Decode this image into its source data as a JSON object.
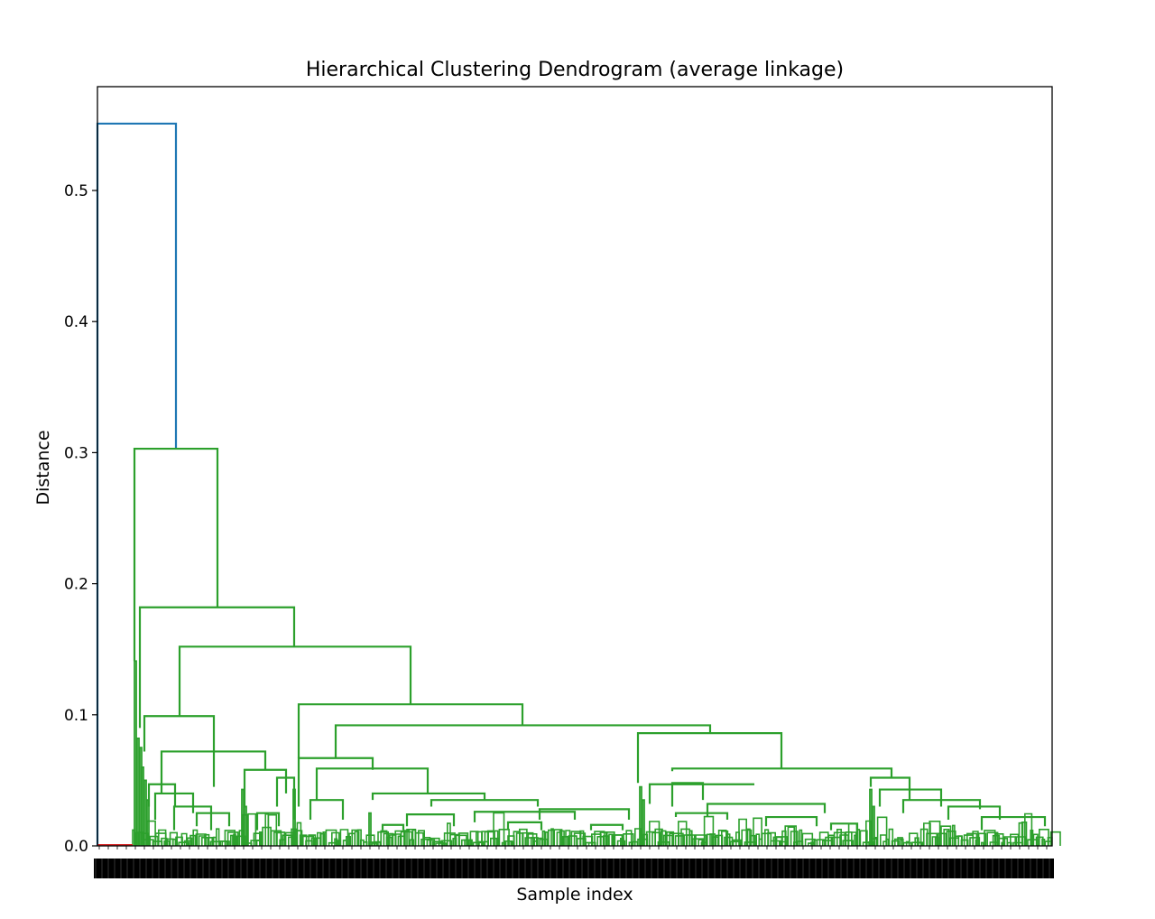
{
  "chart_data": {
    "type": "dendrogram",
    "title": "Hierarchical Clustering Dendrogram (average linkage)",
    "xlabel": "Sample index",
    "ylabel": "Distance",
    "ylim": [
      0.0,
      0.58
    ],
    "yticks": [
      0.0,
      0.1,
      0.2,
      0.3,
      0.4,
      0.5
    ],
    "ytick_labels": [
      "0.0",
      "0.1",
      "0.2",
      "0.3",
      "0.4",
      "0.5"
    ],
    "x_tick_labels": "dense, overlapping and unreadable",
    "grid": false,
    "colors": {
      "above_threshold": "#1f77b4",
      "cluster_1": "#d62728",
      "cluster_2": "#2ca02c"
    },
    "merges": [
      {
        "height": 0.551,
        "color": "above_threshold",
        "note": "root merge: small red cluster + large green cluster"
      },
      {
        "height": 0.303,
        "color": "cluster_2"
      },
      {
        "height": 0.182,
        "color": "cluster_2"
      },
      {
        "height": 0.152,
        "color": "cluster_2"
      },
      {
        "height": 0.141,
        "color": "cluster_2"
      },
      {
        "height": 0.108,
        "color": "cluster_2"
      },
      {
        "height": 0.099,
        "color": "cluster_2"
      },
      {
        "height": 0.092,
        "color": "cluster_2"
      },
      {
        "height": 0.086,
        "color": "cluster_2"
      },
      {
        "height": 0.072,
        "color": "cluster_2"
      },
      {
        "height": 0.067,
        "color": "cluster_2"
      },
      {
        "height": 0.059,
        "color": "cluster_2"
      },
      {
        "height": 0.058,
        "color": "cluster_2"
      },
      {
        "height": 0.057,
        "color": "cluster_2"
      },
      {
        "height": 0.052,
        "color": "cluster_2"
      },
      {
        "height": 0.048,
        "color": "cluster_2"
      },
      {
        "height": 0.047,
        "color": "cluster_2"
      },
      {
        "height": 0.04,
        "color": "cluster_2"
      },
      {
        "height": 0.035,
        "color": "cluster_2"
      },
      {
        "height": 0.032,
        "color": "cluster_2"
      },
      {
        "height": 0.03,
        "color": "cluster_2"
      }
    ]
  }
}
